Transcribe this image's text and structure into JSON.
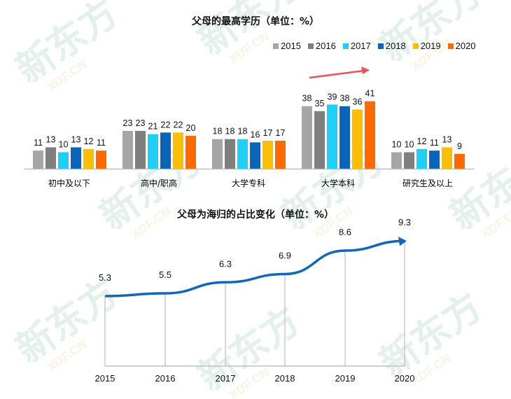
{
  "chart_data": [
    {
      "type": "bar",
      "title": "父母的最高学历（单位：%）",
      "categories": [
        "初中及以下",
        "高中/职高",
        "大学专科",
        "大学本科",
        "研究生及以上"
      ],
      "series": [
        {
          "name": "2015",
          "color": "#a6a6a6",
          "values": [
            11,
            23,
            18,
            38,
            10
          ]
        },
        {
          "name": "2016",
          "color": "#7f7f7f",
          "values": [
            13,
            23,
            18,
            35,
            10
          ]
        },
        {
          "name": "2017",
          "color": "#1fd0f5",
          "values": [
            10,
            21,
            18,
            39,
            12
          ]
        },
        {
          "name": "2018",
          "color": "#0a64b8",
          "values": [
            13,
            22,
            16,
            38,
            11
          ]
        },
        {
          "name": "2019",
          "color": "#fcbf00",
          "values": [
            12,
            22,
            17,
            36,
            13
          ]
        },
        {
          "name": "2020",
          "color": "#ff6a00",
          "values": [
            11,
            20,
            17,
            41,
            9
          ]
        }
      ],
      "legend_position": "top-right",
      "grid": false,
      "annotations": [
        "red upward trend arrow above 大学本科"
      ]
    },
    {
      "type": "line",
      "title": "父母为海归的占比变化（单位：%）",
      "x": [
        "2015",
        "2016",
        "2017",
        "2018",
        "2019",
        "2020"
      ],
      "series": [
        {
          "name": "海归占比",
          "color": "#1166bb",
          "values": [
            5.3,
            5.5,
            6.3,
            6.9,
            8.6,
            9.3
          ]
        }
      ],
      "grid": "vertical drop lines",
      "annotations": [
        "arrowhead at 2020 end point"
      ]
    }
  ],
  "watermark": {
    "text": "新东方",
    "subtext": "XDF.CN"
  }
}
